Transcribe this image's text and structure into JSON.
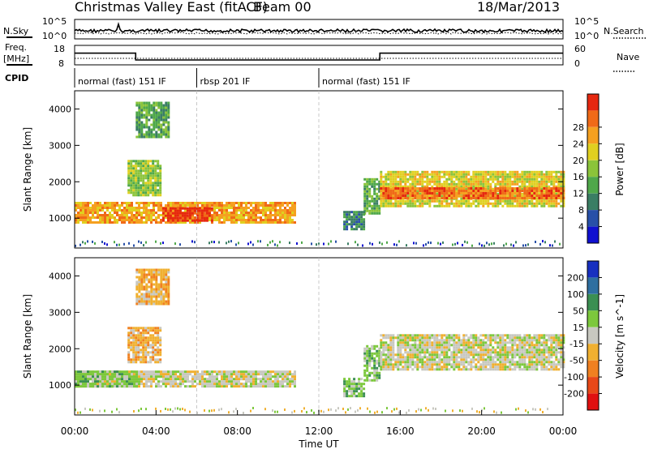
{
  "header": {
    "station": "Christmas Valley East (fitACF)",
    "beam": "Beam 00",
    "date": "18/Mar/2013"
  },
  "top_panels": {
    "nsky_label": "N.Sky",
    "nsearch_label": "N.Search",
    "noise_ticks_left": [
      "10^5",
      "10^0"
    ],
    "noise_ticks_right": [
      "10^5",
      "10^0"
    ],
    "freq_label_1": "Freq.",
    "freq_label_2": "[MHz]",
    "freq_ticks": [
      "18",
      "8"
    ],
    "nave_label": "Nave",
    "nave_ticks": [
      "60",
      "0"
    ],
    "cpid_label": "CPID",
    "cpid_segments": [
      {
        "label": "normal (fast) 151 IF",
        "start_hr": 0,
        "end_hr": 6
      },
      {
        "label": "rbsp 201 IF",
        "start_hr": 6,
        "end_hr": 12
      },
      {
        "label": "normal (fast) 151 IF",
        "start_hr": 12,
        "end_hr": 24
      }
    ],
    "freq_segments": [
      {
        "start_hr": 0,
        "end_hr": 3,
        "mhz": 14
      },
      {
        "start_hr": 3,
        "end_hr": 15,
        "mhz": 10.5
      },
      {
        "start_hr": 15,
        "end_hr": 24,
        "mhz": 14
      }
    ]
  },
  "axes": {
    "x_label": "Time UT",
    "x_ticks": [
      "00:00",
      "04:00",
      "08:00",
      "12:00",
      "16:00",
      "20:00",
      "00:00"
    ],
    "xlim_hr": [
      0,
      24
    ],
    "y_label": "Slant Range [km]",
    "y_ticks": [
      "1000",
      "2000",
      "3000",
      "4000"
    ],
    "ylim_km": [
      180,
      4500
    ]
  },
  "chart_data": [
    {
      "type": "heatmap",
      "title": "Power",
      "colorbar_label": "Power [dB]",
      "colorbar_ticks": [
        "4",
        "8",
        "12",
        "16",
        "20",
        "24",
        "28"
      ],
      "colors": [
        "#1010d0",
        "#2850a8",
        "#3a7e64",
        "#4fa84a",
        "#8bc43a",
        "#e0d020",
        "#f5a020",
        "#f06a18",
        "#e62810"
      ],
      "regions": [
        {
          "t0": 0.0,
          "t1": 10.8,
          "r0": 850,
          "r1": 1450,
          "level": 6
        },
        {
          "t0": 4.3,
          "t1": 6.8,
          "r0": 900,
          "r1": 1300,
          "level": 8
        },
        {
          "t0": 2.6,
          "t1": 4.2,
          "r0": 1600,
          "r1": 2600,
          "level": 4
        },
        {
          "t0": 3.0,
          "t1": 4.6,
          "r0": 3200,
          "r1": 4200,
          "level": 3
        },
        {
          "t0": 14.2,
          "t1": 15.0,
          "r0": 1100,
          "r1": 2100,
          "level": 3
        },
        {
          "t0": 15.0,
          "t1": 24.0,
          "r0": 1300,
          "r1": 2300,
          "level": 5
        },
        {
          "t0": 15.0,
          "t1": 24.0,
          "r0": 1550,
          "r1": 1850,
          "level": 7
        },
        {
          "t0": 13.2,
          "t1": 14.2,
          "r0": 700,
          "r1": 1200,
          "level": 2
        }
      ]
    },
    {
      "type": "heatmap",
      "title": "Velocity",
      "colorbar_label": "Velocity [m s^-1]",
      "colorbar_ticks": [
        "200",
        "100",
        "50",
        "15",
        "-15",
        "-50",
        "-100",
        "-200"
      ],
      "colors": [
        "#1830c0",
        "#2f6fa0",
        "#3b8f52",
        "#7cc83c",
        "#c8c8c0",
        "#f0b030",
        "#f08020",
        "#e84818",
        "#e01010"
      ],
      "regions": [
        {
          "t0": 0.0,
          "t1": 10.8,
          "r0": 950,
          "r1": 1400,
          "level": 4
        },
        {
          "t0": 0.0,
          "t1": 3.0,
          "r0": 950,
          "r1": 1400,
          "level": 3
        },
        {
          "t0": 2.6,
          "t1": 4.2,
          "r0": 1600,
          "r1": 2600,
          "level": 5
        },
        {
          "t0": 3.0,
          "t1": 4.6,
          "r0": 3200,
          "r1": 4200,
          "level": 5
        },
        {
          "t0": 14.2,
          "t1": 15.0,
          "r0": 1100,
          "r1": 2100,
          "level": 3
        },
        {
          "t0": 15.0,
          "t1": 24.0,
          "r0": 1400,
          "r1": 2400,
          "level": 4
        },
        {
          "t0": 13.2,
          "t1": 14.2,
          "r0": 700,
          "r1": 1200,
          "level": 3
        }
      ]
    }
  ]
}
